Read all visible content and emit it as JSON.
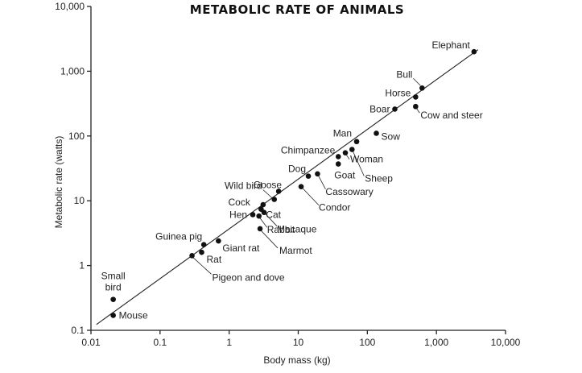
{
  "chart_data": {
    "type": "scatter",
    "title": "METABOLIC RATE OF ANIMALS",
    "xlabel": "Body mass (kg)",
    "ylabel": "Metabolic rate (watts)",
    "x_scale": "log",
    "y_scale": "log",
    "xlim": [
      0.01,
      10000
    ],
    "ylim": [
      0.1,
      10000
    ],
    "x_ticks": [
      "0.01",
      "0.1",
      "1",
      "10",
      "100",
      "1,000",
      "10,000"
    ],
    "y_ticks": [
      "0.1",
      "1",
      "10",
      "100",
      "1,000",
      "10,000"
    ],
    "grid": false,
    "fit_line": {
      "x": [
        0.012,
        4000
      ],
      "y": [
        0.123,
        2150
      ]
    },
    "points": [
      {
        "name": "Elephant",
        "x": 3500,
        "y": 2000
      },
      {
        "name": "Bull",
        "x": 620,
        "y": 550
      },
      {
        "name": "Horse",
        "x": 500,
        "y": 400
      },
      {
        "name": "Boar",
        "x": 250,
        "y": 260
      },
      {
        "name": "Cow and steer",
        "x": 500,
        "y": 285
      },
      {
        "name": "Man",
        "x": 70,
        "y": 82
      },
      {
        "name": "Sow",
        "x": 135,
        "y": 110
      },
      {
        "name": "Chimpanzee",
        "x": 38,
        "y": 48
      },
      {
        "name": "Woman",
        "x": 48,
        "y": 55
      },
      {
        "name": "Sheep",
        "x": 60,
        "y": 62
      },
      {
        "name": "Goat",
        "x": 38,
        "y": 37
      },
      {
        "name": "Dog",
        "x": 14,
        "y": 24
      },
      {
        "name": "Cassowary",
        "x": 19,
        "y": 26
      },
      {
        "name": "Condor",
        "x": 11,
        "y": 16.5
      },
      {
        "name": "Goose",
        "x": 5.2,
        "y": 14
      },
      {
        "name": "Wild bird",
        "x": 4.5,
        "y": 10.5
      },
      {
        "name": "Cock",
        "x": 3.1,
        "y": 8.7
      },
      {
        "name": "Macaque",
        "x": 3.2,
        "y": 6.6
      },
      {
        "name": "Cat",
        "x": 2.9,
        "y": 7.4
      },
      {
        "name": "Hen",
        "x": 2.2,
        "y": 6.1
      },
      {
        "name": "Rabbit",
        "x": 2.7,
        "y": 5.8
      },
      {
        "name": "Marmot",
        "x": 2.8,
        "y": 3.7
      },
      {
        "name": "Guinea pig",
        "x": 0.43,
        "y": 2.1
      },
      {
        "name": "Giant rat",
        "x": 0.7,
        "y": 2.4
      },
      {
        "name": "Rat",
        "x": 0.4,
        "y": 1.6
      },
      {
        "name": "Pigeon and dove",
        "x": 0.29,
        "y": 1.42
      },
      {
        "name": "Small bird",
        "x": 0.021,
        "y": 0.3
      },
      {
        "name": "Mouse",
        "x": 0.021,
        "y": 0.17
      }
    ]
  }
}
